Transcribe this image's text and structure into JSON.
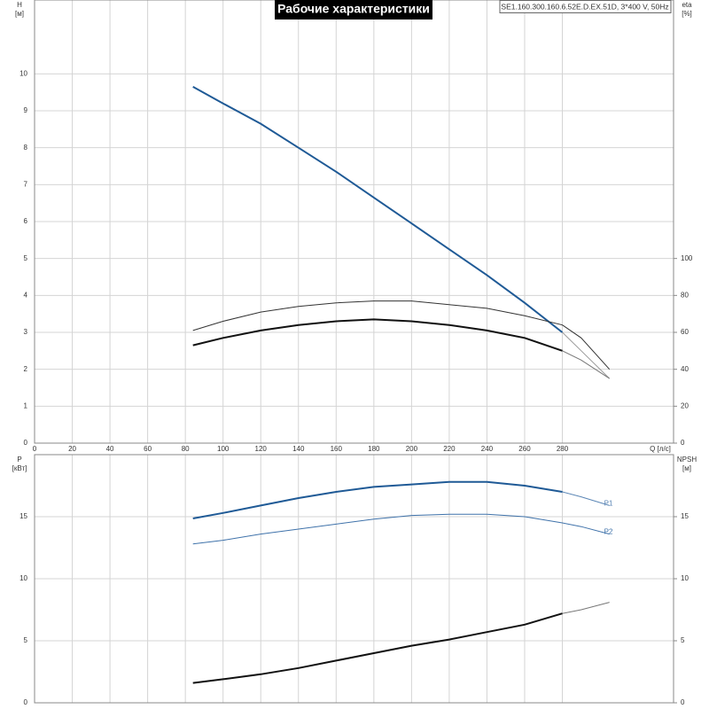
{
  "title": "Рабочие характеристики",
  "model": "SE1.160.300.160.6.52E.D.EX.51D, 3*400 V, 50Hz",
  "chart_data": [
    {
      "type": "line",
      "y_label": "H",
      "y_unit": "[м]",
      "y2_label": "eta",
      "y2_unit": "[%]",
      "x_label": "Q [л/с]",
      "x": [
        84,
        100,
        120,
        140,
        160,
        180,
        200,
        220,
        240,
        260,
        280,
        290,
        305
      ],
      "xlim": [
        0,
        339
      ],
      "xticks": [
        0,
        20,
        40,
        60,
        80,
        100,
        120,
        140,
        160,
        180,
        200,
        220,
        240,
        260,
        280
      ],
      "x_tick_labels": true,
      "ylim": [
        0,
        12
      ],
      "yticks": [
        0,
        1,
        2,
        3,
        4,
        5,
        6,
        7,
        8,
        9,
        10
      ],
      "y2lim": [
        0,
        240
      ],
      "y2ticks": [
        0,
        20,
        40,
        60,
        80,
        100
      ],
      "grid": true,
      "series": [
        {
          "color": "#1f5a96",
          "weight": "heavy",
          "values": [
            9.65,
            9.2,
            8.65,
            8.0,
            7.35,
            6.65,
            5.95,
            5.25,
            4.55,
            3.8,
            3.0,
            null,
            null
          ]
        },
        {
          "color": "#999999",
          "weight": "light",
          "values": [
            null,
            null,
            null,
            null,
            null,
            null,
            null,
            null,
            null,
            null,
            3.0,
            2.5,
            1.75
          ]
        },
        {
          "color": "#333333",
          "weight": "light",
          "axis": "y2",
          "values": [
            61,
            66,
            71,
            74,
            76,
            77,
            77,
            75,
            73,
            69,
            64,
            57,
            40
          ]
        },
        {
          "color": "#111111",
          "weight": "heavy",
          "axis": "y2",
          "values": [
            53,
            57,
            61,
            64,
            66,
            67,
            66,
            64,
            61,
            57,
            50,
            null,
            null
          ]
        },
        {
          "color": "#777777",
          "weight": "light",
          "axis": "y2",
          "values": [
            null,
            null,
            null,
            null,
            null,
            null,
            null,
            null,
            null,
            null,
            50,
            45,
            35
          ]
        }
      ]
    },
    {
      "type": "line",
      "y_label": "P",
      "y_unit": "[кВт]",
      "y2_label": "NPSH",
      "y2_unit": "[м]",
      "x": [
        84,
        100,
        120,
        140,
        160,
        180,
        200,
        220,
        240,
        260,
        280,
        290,
        305
      ],
      "xlim": [
        0,
        339
      ],
      "xticks": [
        0,
        20,
        40,
        60,
        80,
        100,
        120,
        140,
        160,
        180,
        200,
        220,
        240,
        260,
        280
      ],
      "x_tick_labels": false,
      "ylim": [
        0,
        20
      ],
      "yticks": [
        0,
        5,
        10,
        15
      ],
      "y2lim": [
        0,
        20
      ],
      "y2ticks": [
        0,
        5,
        10,
        15
      ],
      "grid": true,
      "series": [
        {
          "color": "#1f5a96",
          "weight": "heavy",
          "values": [
            14.86,
            15.3,
            15.9,
            16.5,
            17,
            17.4,
            17.6,
            17.8,
            17.8,
            17.5,
            17,
            null,
            null
          ]
        },
        {
          "color": "#5b86b5",
          "weight": "light",
          "label": "P1",
          "values": [
            null,
            null,
            null,
            null,
            null,
            null,
            null,
            null,
            null,
            null,
            17,
            16.6,
            15.9
          ]
        },
        {
          "color": "#3f72aa",
          "weight": "light",
          "label": "P2",
          "values": [
            12.8,
            13.1,
            13.6,
            14.0,
            14.4,
            14.8,
            15.1,
            15.2,
            15.2,
            15.0,
            14.5,
            14.2,
            13.6
          ]
        },
        {
          "color": "#111111",
          "weight": "heavy",
          "axis": "y2",
          "values": [
            1.6,
            1.9,
            2.3,
            2.8,
            3.4,
            4.0,
            4.6,
            5.1,
            5.7,
            6.3,
            7.2,
            null,
            null
          ]
        },
        {
          "color": "#777777",
          "weight": "light",
          "axis": "y2",
          "values": [
            null,
            null,
            null,
            null,
            null,
            null,
            null,
            null,
            null,
            null,
            7.2,
            7.5,
            8.1
          ]
        }
      ]
    }
  ]
}
